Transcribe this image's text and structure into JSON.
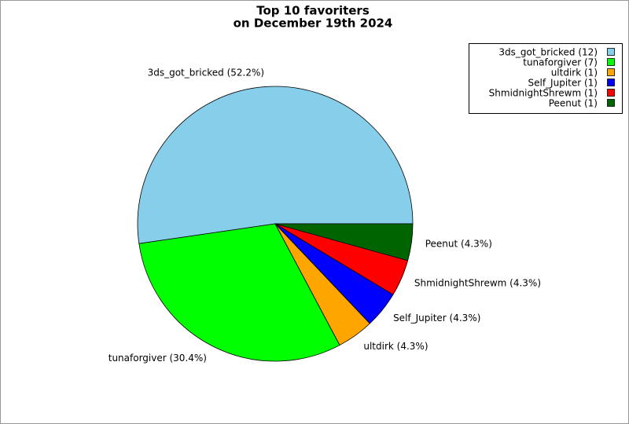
{
  "chart_data": {
    "type": "pie",
    "title": [
      "Top 10 favoriters",
      "on December 19th 2024"
    ],
    "values": [
      52.2,
      30.4,
      4.3,
      4.3,
      4.3,
      4.3
    ],
    "value_labels": [
      "3ds_got_bricked (52.2%)",
      "tunaforgiver (30.4%)",
      "ultdirk (4.3%)",
      "Self_Jupiter (4.3%)",
      "ShmidnightShrewm (4.3%)",
      "Peenut (4.3%)"
    ],
    "legend": [
      "3ds_got_bricked (12)",
      "tunaforgiver (7)",
      "ultdirk (1)",
      "Self_Jupiter (1)",
      "ShmidnightShrewm (1)",
      "Peenut (1)"
    ],
    "colors": [
      "#87ceeb",
      "#00ff00",
      "#ffa500",
      "#0000ff",
      "#ff0000",
      "#006400"
    ],
    "legend_position": "upper right"
  }
}
